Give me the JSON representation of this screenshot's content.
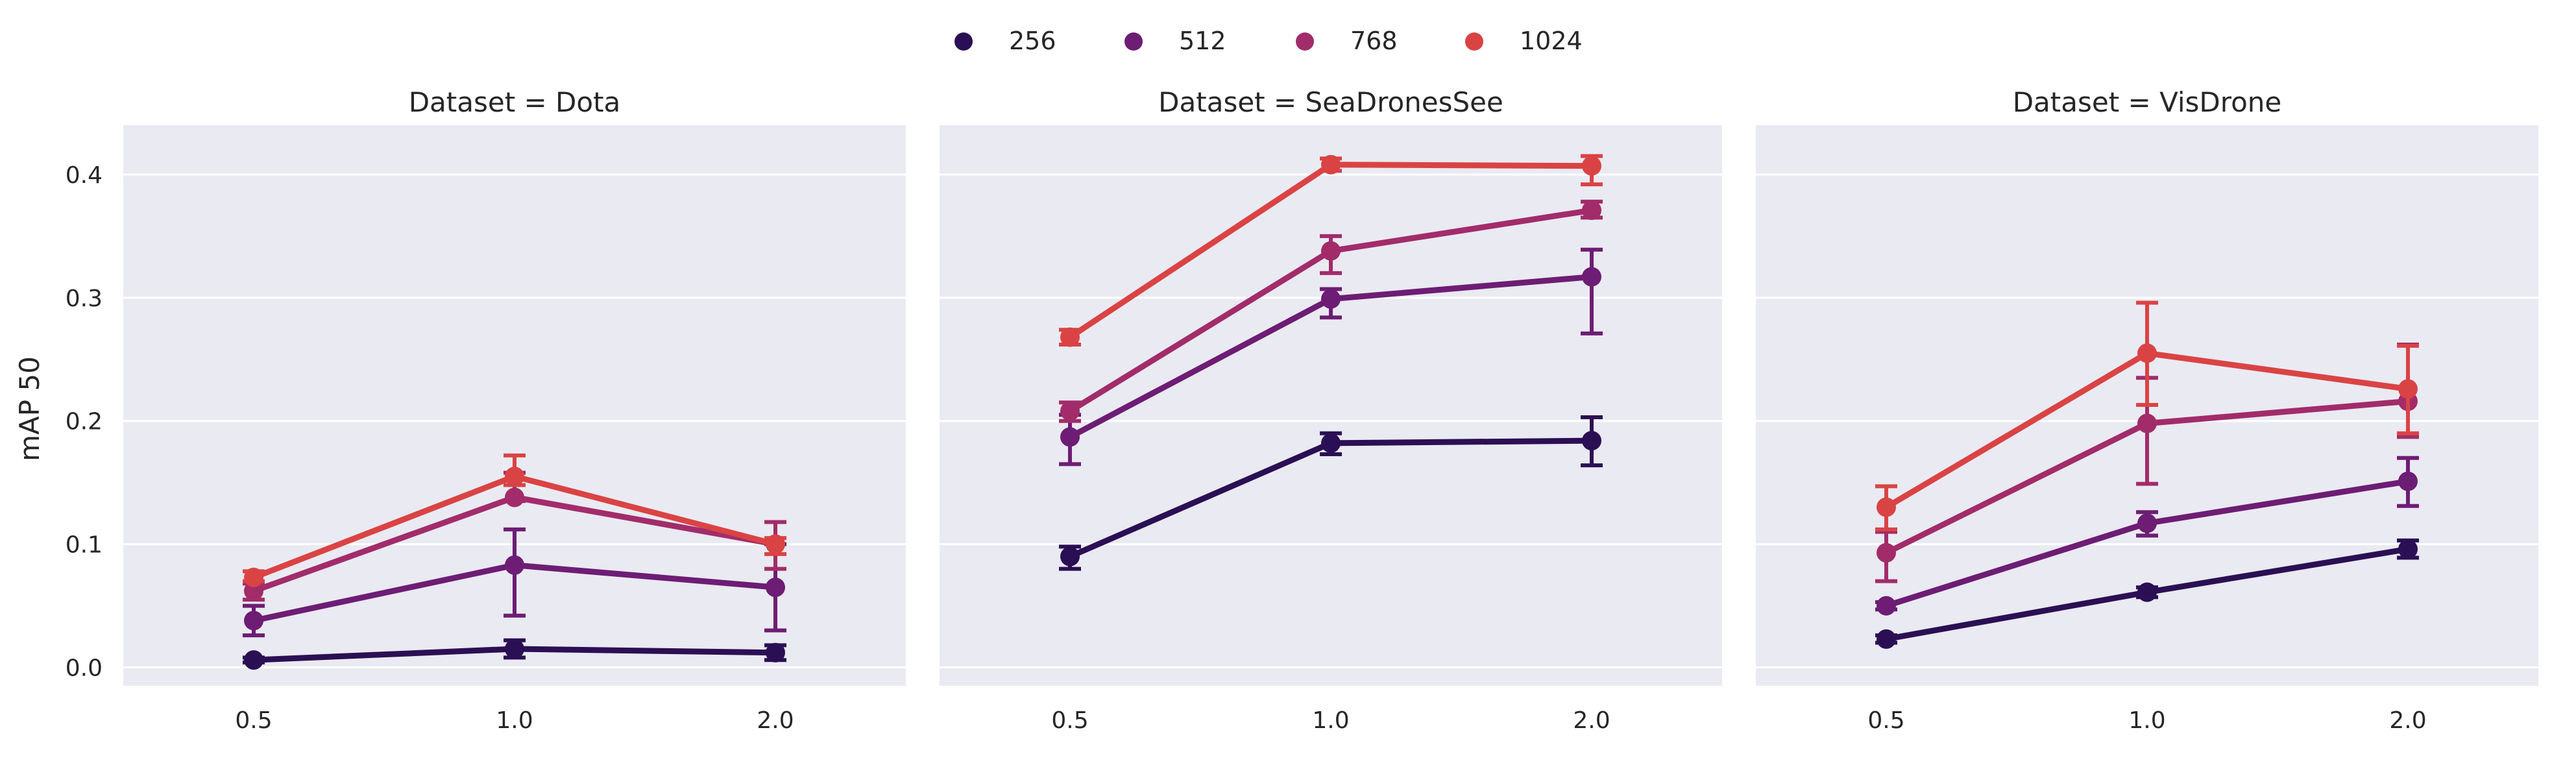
{
  "chart_data": {
    "type": "line",
    "figure_type": "faceted point plot with error bars",
    "ylabel": "mAP 50",
    "xlabel": "",
    "ylim": [
      -0.015,
      0.44
    ],
    "y_ticks": [
      0.0,
      0.1,
      0.2,
      0.3,
      0.4
    ],
    "y_tick_labels": [
      "0.0",
      "0.1",
      "0.2",
      "0.3",
      "0.4"
    ],
    "categories": [
      "0.5",
      "1.0",
      "2.0"
    ],
    "legend": {
      "placement": "top-center",
      "entries": [
        {
          "label": "256",
          "color": "#2b0f54"
        },
        {
          "label": "512",
          "color": "#6d1d74"
        },
        {
          "label": "768",
          "color": "#a22c6a"
        },
        {
          "label": "1024",
          "color": "#da4344"
        }
      ]
    },
    "colors": {
      "256": "#2b0f54",
      "512": "#6d1d74",
      "768": "#a22c6a",
      "1024": "#da4344",
      "panel_bg": "#eaeaf2",
      "grid": "#ffffff"
    },
    "facets": [
      {
        "title": "Dataset = Dota",
        "series": [
          {
            "name": "256",
            "values": [
              0.006,
              0.015,
              0.012
            ],
            "err_low": [
              0.004,
              0.008,
              0.006
            ],
            "err_high": [
              0.008,
              0.022,
              0.018
            ]
          },
          {
            "name": "512",
            "values": [
              0.038,
              0.083,
              0.065
            ],
            "err_low": [
              0.026,
              0.042,
              0.03
            ],
            "err_high": [
              0.05,
              0.112,
              0.1
            ]
          },
          {
            "name": "768",
            "values": [
              0.062,
              0.138,
              0.1
            ],
            "err_low": [
              0.055,
              0.135,
              0.08
            ],
            "err_high": [
              0.068,
              0.158,
              0.118
            ]
          },
          {
            "name": "1024",
            "values": [
              0.073,
              0.155,
              0.1
            ],
            "err_low": [
              0.07,
              0.148,
              0.092
            ],
            "err_high": [
              0.078,
              0.172,
              0.105
            ]
          }
        ]
      },
      {
        "title": "Dataset = SeaDronesSee",
        "series": [
          {
            "name": "256",
            "values": [
              0.09,
              0.182,
              0.184
            ],
            "err_low": [
              0.08,
              0.173,
              0.164
            ],
            "err_high": [
              0.098,
              0.19,
              0.203
            ]
          },
          {
            "name": "512",
            "values": [
              0.187,
              0.299,
              0.317
            ],
            "err_low": [
              0.165,
              0.284,
              0.271
            ],
            "err_high": [
              0.205,
              0.307,
              0.339
            ]
          },
          {
            "name": "768",
            "values": [
              0.208,
              0.338,
              0.371
            ],
            "err_low": [
              0.2,
              0.32,
              0.365
            ],
            "err_high": [
              0.215,
              0.35,
              0.378
            ]
          },
          {
            "name": "1024",
            "values": [
              0.268,
              0.408,
              0.407
            ],
            "err_low": [
              0.262,
              0.403,
              0.392
            ],
            "err_high": [
              0.274,
              0.413,
              0.415
            ]
          }
        ]
      },
      {
        "title": "Dataset = VisDrone",
        "series": [
          {
            "name": "256",
            "values": [
              0.023,
              0.061,
              0.096
            ],
            "err_low": [
              0.02,
              0.057,
              0.089
            ],
            "err_high": [
              0.026,
              0.065,
              0.103
            ]
          },
          {
            "name": "512",
            "values": [
              0.05,
              0.117,
              0.151
            ],
            "err_low": [
              0.047,
              0.107,
              0.131
            ],
            "err_high": [
              0.053,
              0.126,
              0.17
            ]
          },
          {
            "name": "768",
            "values": [
              0.093,
              0.198,
              0.216
            ],
            "err_low": [
              0.07,
              0.149,
              0.187
            ],
            "err_high": [
              0.11,
              0.235,
              0.262
            ]
          },
          {
            "name": "1024",
            "values": [
              0.13,
              0.255,
              0.226
            ],
            "err_low": [
              0.112,
              0.213,
              0.19
            ],
            "err_high": [
              0.147,
              0.296,
              0.261
            ]
          }
        ]
      }
    ]
  }
}
